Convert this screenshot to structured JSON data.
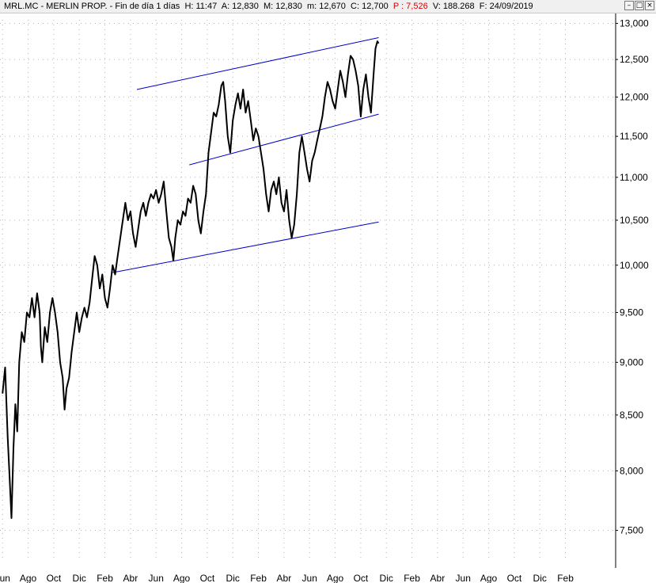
{
  "window": {
    "title_parts": {
      "symbol": "MRL.MC - MERLIN PROP. - Fin de día 1 días",
      "high": "H: 11:47",
      "open": "A: 12,830",
      "max": "M: 12,830",
      "min": "m: 12,670",
      "close": "C: 12,700",
      "change": "P : 7,526",
      "volume": "V: 188.268",
      "date": "F: 24/09/2019"
    },
    "buttons": {
      "minimize": "–",
      "maximize": "□",
      "close": "×"
    },
    "colors": {
      "change_text": "#e00000",
      "price_line": "#000000",
      "trend_lines": "#0000c8",
      "grid": "#b4b4b4"
    }
  },
  "chart_data": {
    "type": "line",
    "title": "",
    "xlabel": "",
    "ylabel": "",
    "ylim": [
      7.3,
      13.05
    ],
    "yscale": "log",
    "y_ticks": [
      7.5,
      8.0,
      8.5,
      9.0,
      9.5,
      10.0,
      10.5,
      11.0,
      11.5,
      12.0,
      12.5,
      13.0
    ],
    "y_tick_labels": [
      "7,500",
      "8,000",
      "8,500",
      "9,000",
      "9,500",
      "10,000",
      "10,500",
      "11,000",
      "11,500",
      "12,000",
      "12,500",
      "13,000"
    ],
    "x_ticks": [
      {
        "label": "Jun",
        "month": 0
      },
      {
        "label": "Ago",
        "month": 2
      },
      {
        "label": "Oct",
        "month": 4
      },
      {
        "label": "Dic",
        "month": 6
      },
      {
        "label": "Feb",
        "month": 8
      },
      {
        "label": "Abr",
        "month": 10
      },
      {
        "label": "Jun",
        "month": 12
      },
      {
        "label": "Ago",
        "month": 14
      },
      {
        "label": "Oct",
        "month": 16
      },
      {
        "label": "Dic",
        "month": 18
      },
      {
        "label": "Feb",
        "month": 20
      },
      {
        "label": "Abr",
        "month": 22
      },
      {
        "label": "Jun",
        "month": 24
      },
      {
        "label": "Ago",
        "month": 26
      },
      {
        "label": "Oct",
        "month": 28
      },
      {
        "label": "Dic",
        "month": 30
      },
      {
        "label": "Feb",
        "month": 32
      },
      {
        "label": "Abr",
        "month": 34
      },
      {
        "label": "Jun",
        "month": 36
      },
      {
        "label": "Ago",
        "month": 38
      },
      {
        "label": "Oct",
        "month": 40
      },
      {
        "label": "Dic",
        "month": 42
      },
      {
        "label": "Feb",
        "month": 44
      }
    ],
    "grid": true,
    "series": [
      {
        "values": [
          [
            0.0,
            8.7
          ],
          [
            0.2,
            8.95
          ],
          [
            0.4,
            8.3
          ],
          [
            0.55,
            7.95
          ],
          [
            0.7,
            7.6
          ],
          [
            0.85,
            8.2
          ],
          [
            1.0,
            8.6
          ],
          [
            1.15,
            8.35
          ],
          [
            1.3,
            9.0
          ],
          [
            1.5,
            9.3
          ],
          [
            1.7,
            9.2
          ],
          [
            1.9,
            9.5
          ],
          [
            2.1,
            9.45
          ],
          [
            2.3,
            9.65
          ],
          [
            2.5,
            9.45
          ],
          [
            2.7,
            9.7
          ],
          [
            2.9,
            9.5
          ],
          [
            3.0,
            9.15
          ],
          [
            3.1,
            9.0
          ],
          [
            3.3,
            9.35
          ],
          [
            3.5,
            9.2
          ],
          [
            3.7,
            9.5
          ],
          [
            3.9,
            9.65
          ],
          [
            4.1,
            9.5
          ],
          [
            4.3,
            9.3
          ],
          [
            4.5,
            9.0
          ],
          [
            4.7,
            8.85
          ],
          [
            4.85,
            8.55
          ],
          [
            5.0,
            8.75
          ],
          [
            5.2,
            8.85
          ],
          [
            5.4,
            9.1
          ],
          [
            5.6,
            9.3
          ],
          [
            5.8,
            9.5
          ],
          [
            6.0,
            9.3
          ],
          [
            6.2,
            9.45
          ],
          [
            6.4,
            9.55
          ],
          [
            6.6,
            9.45
          ],
          [
            6.8,
            9.6
          ],
          [
            7.0,
            9.85
          ],
          [
            7.2,
            10.1
          ],
          [
            7.4,
            10.0
          ],
          [
            7.6,
            9.75
          ],
          [
            7.8,
            9.9
          ],
          [
            8.0,
            9.65
          ],
          [
            8.2,
            9.55
          ],
          [
            8.4,
            9.75
          ],
          [
            8.6,
            10.0
          ],
          [
            8.8,
            9.9
          ],
          [
            9.0,
            10.1
          ],
          [
            9.2,
            10.3
          ],
          [
            9.4,
            10.5
          ],
          [
            9.6,
            10.7
          ],
          [
            9.8,
            10.5
          ],
          [
            10.0,
            10.6
          ],
          [
            10.2,
            10.35
          ],
          [
            10.4,
            10.2
          ],
          [
            10.6,
            10.4
          ],
          [
            10.8,
            10.6
          ],
          [
            11.0,
            10.7
          ],
          [
            11.2,
            10.55
          ],
          [
            11.4,
            10.7
          ],
          [
            11.6,
            10.8
          ],
          [
            11.8,
            10.75
          ],
          [
            12.0,
            10.85
          ],
          [
            12.2,
            10.7
          ],
          [
            12.4,
            10.8
          ],
          [
            12.6,
            10.95
          ],
          [
            12.8,
            10.6
          ],
          [
            13.0,
            10.3
          ],
          [
            13.2,
            10.2
          ],
          [
            13.35,
            10.05
          ],
          [
            13.5,
            10.3
          ],
          [
            13.7,
            10.5
          ],
          [
            13.9,
            10.45
          ],
          [
            14.1,
            10.6
          ],
          [
            14.3,
            10.55
          ],
          [
            14.5,
            10.75
          ],
          [
            14.7,
            10.7
          ],
          [
            14.9,
            10.9
          ],
          [
            15.1,
            10.8
          ],
          [
            15.3,
            10.5
          ],
          [
            15.5,
            10.35
          ],
          [
            15.7,
            10.6
          ],
          [
            15.9,
            10.8
          ],
          [
            16.1,
            11.3
          ],
          [
            16.3,
            11.55
          ],
          [
            16.5,
            11.8
          ],
          [
            16.7,
            11.75
          ],
          [
            16.9,
            11.9
          ],
          [
            17.1,
            12.15
          ],
          [
            17.25,
            12.2
          ],
          [
            17.4,
            11.95
          ],
          [
            17.6,
            11.5
          ],
          [
            17.8,
            11.3
          ],
          [
            18.0,
            11.7
          ],
          [
            18.2,
            11.9
          ],
          [
            18.4,
            12.05
          ],
          [
            18.6,
            11.85
          ],
          [
            18.8,
            12.1
          ],
          [
            19.0,
            11.8
          ],
          [
            19.2,
            11.95
          ],
          [
            19.4,
            11.7
          ],
          [
            19.6,
            11.45
          ],
          [
            19.8,
            11.6
          ],
          [
            20.0,
            11.5
          ],
          [
            20.2,
            11.3
          ],
          [
            20.4,
            11.1
          ],
          [
            20.6,
            10.8
          ],
          [
            20.8,
            10.6
          ],
          [
            21.0,
            10.85
          ],
          [
            21.2,
            10.95
          ],
          [
            21.4,
            10.8
          ],
          [
            21.6,
            11.0
          ],
          [
            21.8,
            10.7
          ],
          [
            22.0,
            10.6
          ],
          [
            22.2,
            10.85
          ],
          [
            22.4,
            10.5
          ],
          [
            22.6,
            10.3
          ],
          [
            22.8,
            10.45
          ],
          [
            23.0,
            10.8
          ],
          [
            23.2,
            11.3
          ],
          [
            23.4,
            11.5
          ],
          [
            23.6,
            11.3
          ],
          [
            23.8,
            11.1
          ],
          [
            24.0,
            10.95
          ],
          [
            24.2,
            11.2
          ],
          [
            24.4,
            11.3
          ],
          [
            24.6,
            11.45
          ],
          [
            24.8,
            11.6
          ],
          [
            25.0,
            11.75
          ],
          [
            25.2,
            12.0
          ],
          [
            25.4,
            12.2
          ],
          [
            25.6,
            12.1
          ],
          [
            25.8,
            11.95
          ],
          [
            26.0,
            11.85
          ],
          [
            26.2,
            12.1
          ],
          [
            26.4,
            12.35
          ],
          [
            26.6,
            12.2
          ],
          [
            26.8,
            12.0
          ],
          [
            27.0,
            12.3
          ],
          [
            27.2,
            12.55
          ],
          [
            27.4,
            12.5
          ],
          [
            27.6,
            12.35
          ],
          [
            27.8,
            12.15
          ],
          [
            28.0,
            11.75
          ],
          [
            28.2,
            12.1
          ],
          [
            28.4,
            12.3
          ],
          [
            28.6,
            12.0
          ],
          [
            28.8,
            11.8
          ],
          [
            29.0,
            12.3
          ],
          [
            29.15,
            12.65
          ],
          [
            29.3,
            12.75
          ],
          [
            29.4,
            12.72
          ]
        ]
      }
    ],
    "trend_lines": [
      {
        "points": [
          [
            10.5,
            12.1
          ],
          [
            29.4,
            12.8
          ]
        ]
      },
      {
        "points": [
          [
            14.6,
            11.15
          ],
          [
            29.4,
            11.78
          ]
        ]
      },
      {
        "points": [
          [
            8.6,
            9.92
          ],
          [
            29.4,
            10.48
          ]
        ]
      }
    ]
  }
}
